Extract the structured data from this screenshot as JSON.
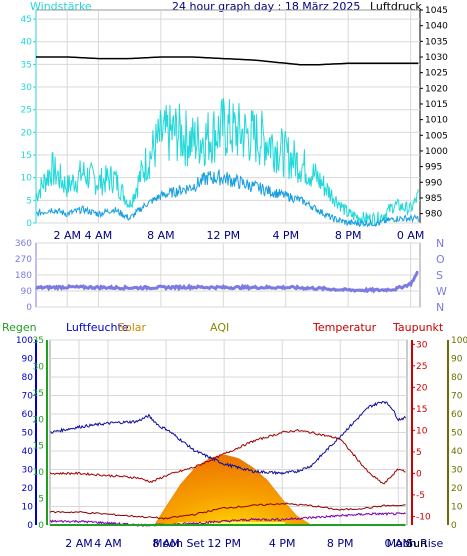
{
  "header": {
    "wind_title": "Windstärke",
    "graph_title": "24 hour graph day : 18 März 2025",
    "pressure_title": "Luftdruck"
  },
  "colors": {
    "wind_gust": "#22d8d8",
    "wind_avg": "#1aa0e0",
    "pressure": "#000000",
    "direction": "#7b7be0",
    "humidity": "#1010a0",
    "temperature": "#a00000",
    "dewpoint": "#880000",
    "solar_outer": "#ffd000",
    "solar_inner": "#ee7700",
    "aqi": "#7a00aa",
    "rain": "#20a020"
  },
  "chart_data": [
    {
      "type": "line",
      "title": "24 hour graph day : 18 März 2025",
      "x_tick_labels": [
        "2 AM",
        "4 AM",
        "8 AM",
        "12 PM",
        "4 PM",
        "8 PM",
        "0 AM"
      ],
      "x_tick_hours": [
        2,
        4,
        8,
        12,
        16,
        20,
        24
      ],
      "x_range_hours": [
        0,
        24.6
      ],
      "left_axis": {
        "label": "Windstärke",
        "range": [
          0,
          47
        ],
        "ticks": [
          0,
          5,
          10,
          15,
          20,
          25,
          30,
          35,
          40,
          45
        ]
      },
      "right_axis": {
        "label": "Luftdruck",
        "range": [
          977,
          1045
        ],
        "ticks": [
          980,
          985,
          990,
          995,
          1000,
          1005,
          1010,
          1015,
          1020,
          1025,
          1030,
          1035,
          1040,
          1045
        ]
      },
      "series": [
        {
          "axis": "left",
          "hours": [
            0,
            1,
            2,
            3,
            4,
            5,
            6,
            7,
            8,
            9,
            10,
            11,
            12,
            13,
            14,
            15,
            16,
            17,
            18,
            19,
            20,
            21,
            22,
            23,
            24,
            24.5
          ],
          "values": [
            6,
            12,
            8,
            11,
            9,
            10,
            4,
            13,
            19,
            20,
            18,
            19,
            21,
            20,
            19,
            18,
            15,
            13,
            10,
            6,
            2,
            1,
            1,
            4,
            3,
            6
          ]
        },
        {
          "axis": "left",
          "hours": [
            0,
            1,
            2,
            3,
            4,
            5,
            6,
            7,
            8,
            9,
            10,
            11,
            12,
            13,
            14,
            15,
            16,
            17,
            18,
            19,
            20,
            21,
            22,
            23,
            24,
            24.5
          ],
          "values": [
            2,
            3,
            2,
            3,
            2,
            3,
            1,
            4,
            6,
            7,
            8,
            10,
            10,
            9,
            8,
            7,
            6,
            5,
            3,
            1,
            0,
            0,
            0,
            1,
            1,
            1
          ]
        },
        {
          "name": "Luftdruck",
          "axis": "right",
          "hours": [
            0,
            2,
            4,
            6,
            8,
            10,
            12,
            14,
            16,
            17,
            18,
            20,
            22,
            24,
            24.5
          ],
          "values": [
            1030,
            1030,
            1029.5,
            1029.5,
            1030,
            1030,
            1029.5,
            1029,
            1028,
            1027.5,
            1027.5,
            1028,
            1028,
            1028,
            1028
          ]
        }
      ]
    },
    {
      "type": "scatter",
      "y_tick_labels": [
        "0",
        "90",
        "180",
        "270",
        "360"
      ],
      "y_range": [
        0,
        360
      ],
      "right_compass_labels": [
        "N",
        "W",
        "S",
        "O",
        "N"
      ],
      "series": [
        {
          "hours": [
            0,
            2,
            4,
            6,
            8,
            10,
            12,
            14,
            16,
            18,
            19,
            20,
            22,
            23,
            24,
            24.5
          ],
          "values": [
            108,
            112,
            110,
            108,
            110,
            112,
            110,
            110,
            110,
            105,
            100,
            95,
            95,
            100,
            130,
            200
          ]
        }
      ]
    },
    {
      "type": "line",
      "legend": [
        "Regen",
        "Luftfeuchte",
        "Solar",
        "AQI",
        "Temperatur",
        "Taupunkt"
      ],
      "x_tick_labels": [
        "2 AM",
        "4 AM",
        "8 AM",
        "12 PM",
        "4 PM",
        "8 PM",
        "0 AM"
      ],
      "x_tick_hours": [
        2,
        4,
        8,
        12,
        16,
        20,
        24
      ],
      "x_range_hours": [
        0,
        24.6
      ],
      "event_labels": [
        {
          "text": "Moon Set",
          "hour": 7.1
        },
        {
          "text": "Moon Rise",
          "hour": 23.2
        }
      ],
      "sun_label": "Sun",
      "axis_humidity": {
        "range": [
          0,
          100
        ],
        "ticks": [
          0,
          10,
          20,
          30,
          40,
          50,
          60,
          70,
          80,
          90,
          100
        ]
      },
      "axis_rain": {
        "range": [
          0,
          35
        ],
        "ticks": [
          0,
          5,
          10,
          15,
          20,
          25,
          30,
          35
        ]
      },
      "axis_temperature": {
        "range": [
          -12,
          31
        ],
        "ticks": [
          -10,
          -5,
          0,
          5,
          10,
          15,
          20,
          25,
          30
        ]
      },
      "axis_solar": {
        "range": [
          0,
          100
        ],
        "ticks": [
          0,
          10,
          20,
          30,
          40,
          50,
          60,
          70,
          80,
          90,
          100
        ]
      },
      "series": [
        {
          "name": "Luftfeuchte",
          "axis": "humidity",
          "hours": [
            0,
            2,
            4,
            6,
            6.8,
            7.6,
            8,
            10,
            12,
            14,
            16,
            17,
            18,
            20,
            21,
            22,
            23,
            23.5,
            24,
            24.5
          ],
          "values": [
            50,
            53,
            55,
            56,
            59,
            53,
            52,
            40,
            33,
            29,
            28,
            29,
            32,
            48,
            56,
            64,
            67,
            64,
            57,
            58
          ]
        },
        {
          "name": "Temperatur",
          "axis": "temperature",
          "hours": [
            0,
            2,
            4,
            6,
            7,
            8,
            10,
            12,
            14,
            16,
            17,
            18,
            20,
            21,
            22,
            23,
            24,
            24.5
          ],
          "values": [
            0,
            0,
            -0.5,
            -1,
            -2,
            -0.5,
            1.5,
            4.5,
            7.5,
            9.5,
            10,
            9.5,
            8,
            4,
            0,
            -2.5,
            1,
            0.5
          ]
        },
        {
          "name": "Taupunkt",
          "axis": "temperature",
          "hours": [
            0,
            2,
            4,
            6,
            8,
            10,
            12,
            14,
            16,
            18,
            19,
            20,
            22,
            23,
            24,
            24.5
          ],
          "values": [
            -9,
            -9,
            -9.5,
            -10,
            -10.5,
            -9.5,
            -8,
            -7.5,
            -7,
            -7.5,
            -8,
            -8.5,
            -8,
            -7.5,
            -7.5,
            -7.5
          ]
        },
        {
          "name": "Solar",
          "axis": "solar",
          "type": "area",
          "hours": [
            7.2,
            8,
            9,
            10,
            11,
            12,
            13,
            14,
            15,
            16,
            17,
            18
          ],
          "values": [
            0,
            10,
            22,
            31,
            36,
            38,
            36,
            31,
            24,
            14,
            5,
            0
          ]
        },
        {
          "name": "AQI",
          "axis": "solar",
          "hours": [
            0,
            2,
            4,
            6,
            8,
            10,
            12,
            14,
            16,
            18,
            20,
            22,
            24,
            24.5
          ],
          "values": [
            2,
            2,
            1,
            0,
            0,
            1,
            2,
            3,
            3,
            4,
            5,
            6,
            6,
            6
          ]
        },
        {
          "name": "Regen",
          "axis": "rain",
          "hours": [
            0,
            24.5
          ],
          "values": [
            0,
            0
          ]
        }
      ]
    }
  ]
}
